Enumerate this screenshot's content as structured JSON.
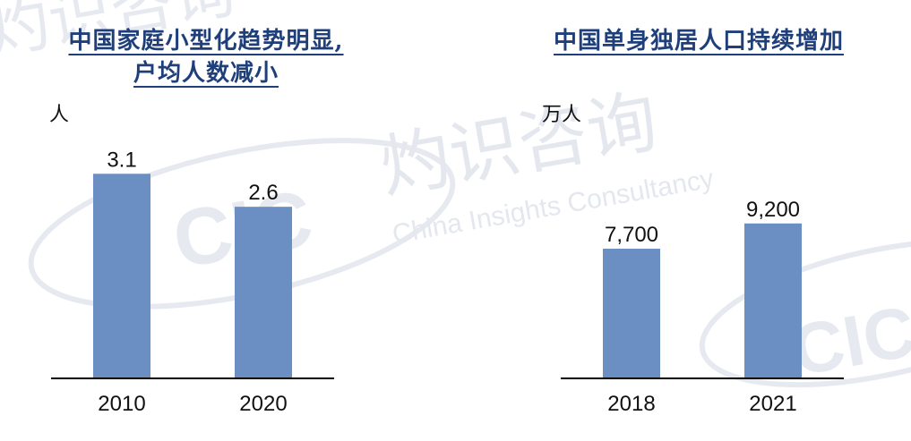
{
  "watermark": {
    "cn": "灼识咨询",
    "en": "China Insights Consultancy",
    "logo": "CIC",
    "color": "#e4e8ee"
  },
  "colors": {
    "bar": "#6b8fc2",
    "title": "#1f3f7a"
  },
  "chart_data": [
    {
      "type": "bar",
      "title_lines": [
        "中国家庭小型化趋势明显,",
        "户均人数减小"
      ],
      "ylabel": "人",
      "categories": [
        "2010",
        "2020"
      ],
      "values": [
        3.1,
        2.6
      ],
      "value_labels": [
        "3.1",
        "2.6"
      ],
      "ylim": [
        0,
        3.7
      ],
      "grid": false,
      "legend": "none"
    },
    {
      "type": "bar",
      "title_lines": [
        "中国单身独居人口持续增加"
      ],
      "ylabel": "万人",
      "categories": [
        "2018",
        "2021"
      ],
      "values": [
        7700,
        9200
      ],
      "value_labels": [
        "7,700",
        "9,200"
      ],
      "ylim": [
        0,
        14500
      ],
      "grid": false,
      "legend": "none"
    }
  ]
}
